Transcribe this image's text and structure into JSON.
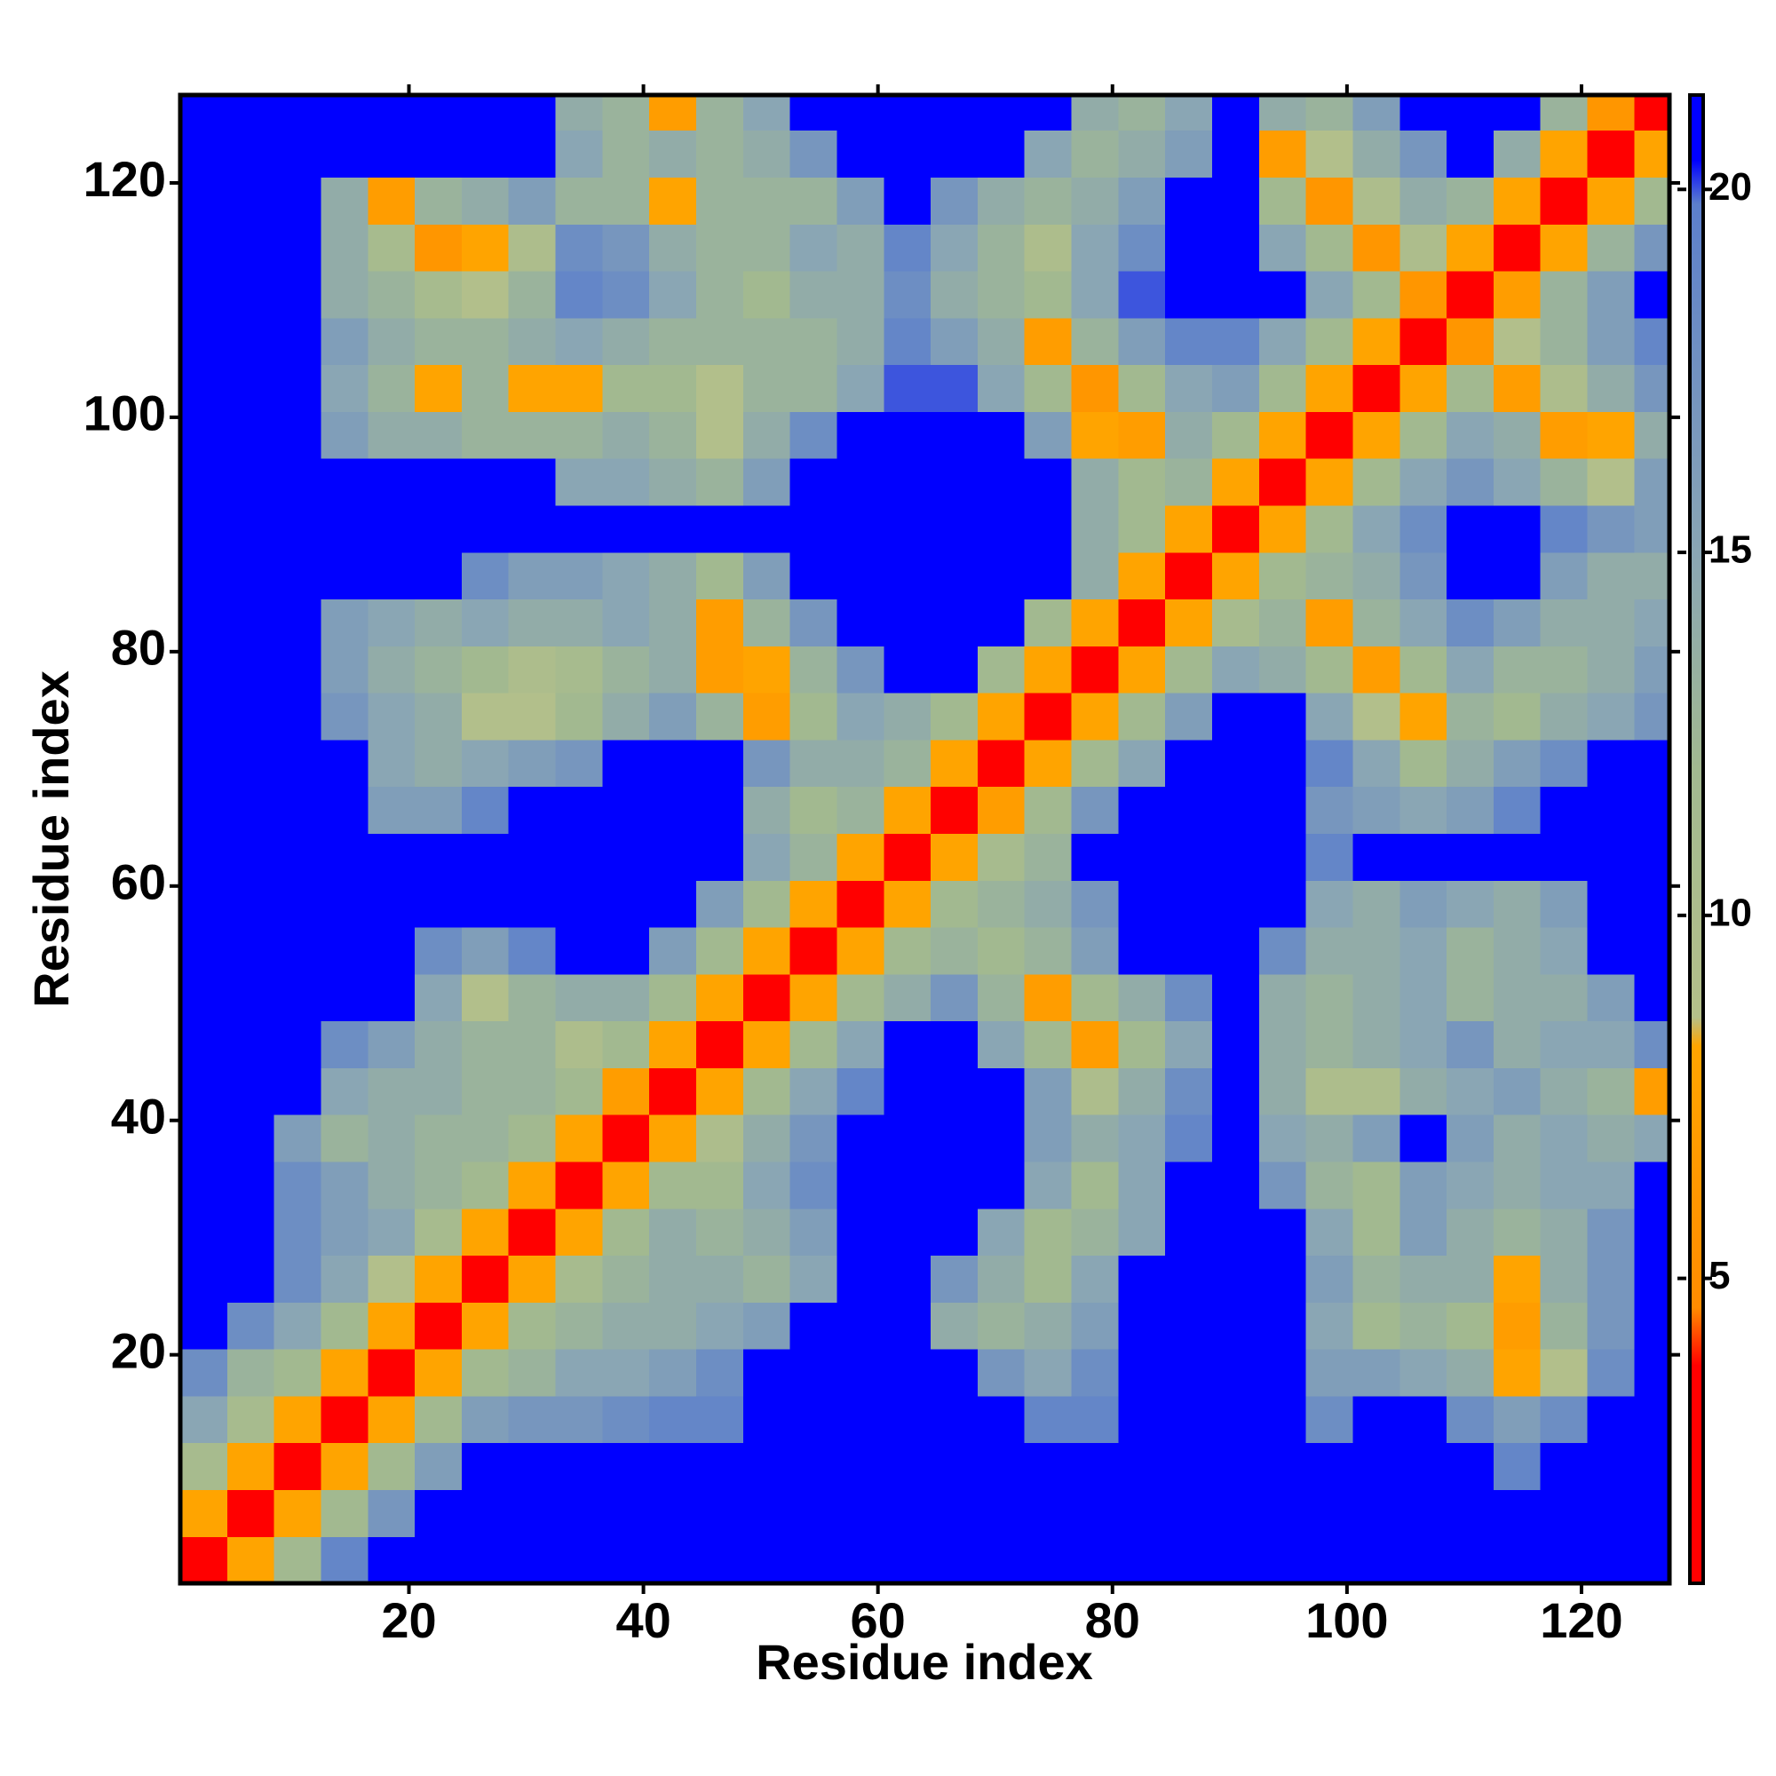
{
  "chart_data": {
    "type": "heatmap",
    "xlabel": "Residue index",
    "ylabel": "Residue index",
    "xlim": [
      0.5,
      127.5
    ],
    "ylim": [
      0.5,
      127.5
    ],
    "xticks": [
      20,
      40,
      60,
      80,
      100,
      120
    ],
    "yticks": [
      20,
      40,
      60,
      80,
      100,
      120
    ],
    "xbins": [
      0.5,
      4.5,
      8.5,
      12.5,
      16.5,
      20.5,
      24.5,
      28.5,
      32.5,
      36.5,
      40.5,
      44.5,
      48.5,
      52.5,
      56.5,
      60.5,
      64.5,
      68.5,
      72.5,
      76.5,
      80.5,
      84.5,
      88.5,
      92.5,
      96.5,
      100.5,
      104.5,
      108.5,
      112.5,
      116.5,
      120.5,
      124.5,
      127.5
    ],
    "ybins": [
      0.5,
      4.5,
      8.5,
      12.5,
      16.5,
      20.5,
      24.5,
      28.5,
      32.5,
      36.5,
      40.5,
      44.5,
      48.5,
      52.5,
      56.5,
      60.5,
      64.5,
      68.5,
      72.5,
      76.5,
      80.5,
      84.5,
      88.5,
      92.5,
      96.5,
      100.5,
      104.5,
      108.5,
      112.5,
      116.5,
      120.5,
      124.5,
      127.5
    ],
    "zlim": [
      0.8,
      21.3
    ],
    "zticks": [
      5,
      10,
      15,
      20
    ],
    "colorscale": [
      {
        "value": 0.8,
        "color": "#ff0000"
      },
      {
        "value": 3.8,
        "color": "#ff0000"
      },
      {
        "value": 4.6,
        "color": "#ff8c00"
      },
      {
        "value": 8.2,
        "color": "#ffa500"
      },
      {
        "value": 8.6,
        "color": "#b4c08a"
      },
      {
        "value": 12,
        "color": "#a2b990"
      },
      {
        "value": 15,
        "color": "#8aa6b4"
      },
      {
        "value": 19.8,
        "color": "#5c7fcc"
      },
      {
        "value": 20.4,
        "color": "#0000ff"
      },
      {
        "value": 21.3,
        "color": "#0000ff"
      }
    ],
    "z": [
      [
        3,
        8,
        12,
        19,
        21,
        21,
        21,
        21,
        21,
        21,
        21,
        21,
        21,
        21,
        21,
        21,
        21,
        21,
        21,
        21,
        21,
        21,
        21,
        21,
        21,
        21,
        21,
        21,
        21,
        21,
        21,
        21
      ],
      [
        8,
        3,
        8,
        12,
        17,
        21,
        21,
        21,
        21,
        21,
        21,
        21,
        21,
        21,
        21,
        21,
        21,
        21,
        21,
        21,
        21,
        21,
        21,
        21,
        21,
        21,
        21,
        21,
        21,
        21,
        21,
        21
      ],
      [
        11,
        8,
        3,
        8,
        12,
        16,
        21,
        21,
        21,
        21,
        21,
        21,
        21,
        21,
        21,
        21,
        21,
        21,
        21,
        21,
        21,
        21,
        21,
        21,
        21,
        21,
        21,
        21,
        19,
        21,
        21,
        21
      ],
      [
        15,
        11,
        8,
        3,
        8,
        12,
        16,
        17,
        17,
        18,
        19,
        19,
        21,
        21,
        21,
        21,
        21,
        21,
        19,
        19,
        21,
        21,
        21,
        21,
        18,
        21,
        21,
        18,
        16,
        18,
        21,
        21
      ],
      [
        18,
        13,
        12,
        8,
        3,
        8,
        12,
        13,
        15,
        15,
        16,
        18,
        21,
        21,
        21,
        21,
        21,
        17,
        15,
        18,
        21,
        21,
        21,
        21,
        16,
        16,
        15,
        14,
        8,
        9,
        18,
        21
      ],
      [
        21,
        18,
        15,
        12,
        8,
        3,
        8,
        12,
        13,
        14,
        14,
        15,
        16,
        21,
        21,
        21,
        14,
        13,
        14,
        16,
        21,
        21,
        21,
        21,
        15,
        12,
        13,
        12,
        7,
        13,
        17,
        21
      ],
      [
        21,
        21,
        18,
        15,
        9,
        8,
        3,
        8,
        11,
        13,
        14,
        14,
        13,
        15,
        21,
        21,
        17,
        14,
        12,
        15,
        21,
        21,
        21,
        21,
        16,
        13,
        14,
        14,
        8,
        14,
        17,
        21
      ],
      [
        21,
        21,
        18,
        16,
        15,
        11,
        8,
        3,
        8,
        12,
        14,
        13,
        14,
        16,
        21,
        21,
        21,
        15,
        12,
        13,
        15,
        21,
        21,
        21,
        15,
        12,
        16,
        14,
        13,
        14,
        17,
        21
      ],
      [
        21,
        21,
        18,
        16,
        14,
        13,
        12,
        8,
        3,
        8,
        12,
        12,
        15,
        18,
        21,
        21,
        21,
        21,
        15,
        12,
        15,
        21,
        21,
        17,
        13,
        12,
        16,
        15,
        14,
        15,
        15,
        21
      ],
      [
        21,
        21,
        16,
        13,
        14,
        13,
        13,
        12,
        8,
        3,
        8,
        10,
        14,
        17,
        21,
        21,
        21,
        21,
        16,
        14,
        15,
        19,
        21,
        15,
        14,
        16,
        21,
        16,
        14,
        15,
        14,
        15
      ],
      [
        21,
        21,
        21,
        15,
        14,
        14,
        13,
        13,
        12,
        7,
        3,
        8,
        12,
        15,
        19,
        21,
        21,
        21,
        16,
        10,
        14,
        18,
        21,
        14,
        10,
        10,
        14,
        15,
        16,
        14,
        13,
        7
      ],
      [
        21,
        21,
        21,
        18,
        16,
        14,
        13,
        13,
        10,
        12,
        8,
        3,
        8,
        12,
        15,
        21,
        21,
        15,
        12,
        7,
        12,
        15,
        21,
        14,
        13,
        14,
        15,
        17,
        14,
        15,
        15,
        18
      ],
      [
        21,
        21,
        21,
        21,
        21,
        15,
        9,
        13,
        14,
        14,
        12,
        8,
        3,
        8,
        12,
        14,
        17,
        13,
        7,
        12,
        14,
        18,
        21,
        14,
        13,
        14,
        15,
        13,
        14,
        14,
        16,
        21
      ],
      [
        21,
        21,
        21,
        21,
        21,
        18,
        16,
        19,
        21,
        21,
        16,
        12,
        8,
        3,
        8,
        12,
        13,
        12,
        13,
        16,
        21,
        21,
        21,
        18,
        14,
        14,
        15,
        13,
        14,
        15,
        21,
        21
      ],
      [
        21,
        21,
        21,
        21,
        21,
        21,
        21,
        21,
        21,
        21,
        21,
        16,
        12,
        8,
        3,
        8,
        12,
        13,
        14,
        17,
        21,
        21,
        21,
        21,
        15,
        14,
        16,
        15,
        14,
        16,
        21,
        21
      ],
      [
        21,
        21,
        21,
        21,
        21,
        21,
        21,
        21,
        21,
        21,
        21,
        21,
        15,
        13,
        8,
        3,
        8,
        11,
        13,
        21,
        21,
        21,
        21,
        21,
        19,
        21,
        21,
        21,
        21,
        21,
        21,
        21
      ],
      [
        21,
        21,
        21,
        21,
        16,
        16,
        19,
        21,
        21,
        21,
        21,
        21,
        14,
        12,
        13,
        8,
        3,
        7,
        12,
        17,
        21,
        21,
        21,
        21,
        17,
        16,
        15,
        16,
        19,
        21,
        21,
        21
      ],
      [
        21,
        21,
        21,
        21,
        15,
        14,
        15,
        16,
        17,
        21,
        21,
        21,
        17,
        14,
        14,
        13,
        8,
        3,
        8,
        12,
        15,
        21,
        21,
        21,
        19,
        15,
        12,
        14,
        16,
        18,
        21,
        21
      ],
      [
        21,
        21,
        21,
        17,
        15,
        14,
        9,
        9,
        12,
        14,
        16,
        13,
        7,
        12,
        15,
        14,
        12,
        8,
        3,
        8,
        12,
        16,
        21,
        21,
        15,
        9,
        8,
        13,
        12,
        14,
        15,
        17
      ],
      [
        21,
        21,
        21,
        16,
        14,
        13,
        12,
        10,
        11,
        13,
        14,
        7,
        8,
        13,
        17,
        21,
        21,
        12,
        8,
        3,
        8,
        12,
        15,
        14,
        12,
        7,
        12,
        15,
        13,
        13,
        14,
        16
      ],
      [
        21,
        21,
        21,
        16,
        15,
        14,
        15,
        14,
        14,
        15,
        14,
        7,
        13,
        17,
        21,
        21,
        21,
        21,
        12,
        8,
        3,
        8,
        11,
        13,
        7,
        13,
        15,
        18,
        16,
        14,
        14,
        15
      ],
      [
        21,
        21,
        21,
        21,
        21,
        21,
        18,
        16,
        16,
        15,
        14,
        12,
        16,
        21,
        21,
        21,
        21,
        21,
        21,
        14,
        8,
        3,
        8,
        12,
        13,
        14,
        17,
        21,
        21,
        16,
        14,
        14
      ],
      [
        21,
        21,
        21,
        21,
        21,
        21,
        21,
        21,
        21,
        21,
        21,
        21,
        21,
        21,
        21,
        21,
        21,
        21,
        21,
        14,
        12,
        8,
        3,
        8,
        12,
        15,
        18,
        21,
        21,
        19,
        17,
        16
      ],
      [
        21,
        21,
        21,
        21,
        21,
        21,
        21,
        21,
        15,
        15,
        14,
        13,
        16,
        21,
        21,
        21,
        21,
        21,
        21,
        14,
        12,
        13,
        8,
        3,
        8,
        12,
        15,
        17,
        15,
        13,
        9,
        16
      ],
      [
        21,
        21,
        21,
        16,
        14,
        14,
        13,
        13,
        13,
        14,
        13,
        9,
        14,
        18,
        21,
        21,
        21,
        21,
        16,
        8,
        7,
        14,
        12,
        8,
        3,
        8,
        12,
        15,
        14,
        7,
        8,
        14
      ],
      [
        21,
        21,
        21,
        15,
        13,
        8,
        13,
        8,
        8,
        12,
        12,
        9,
        13,
        13,
        15,
        20,
        20,
        15,
        12,
        6,
        12,
        15,
        16,
        12,
        8,
        3,
        8,
        12,
        7,
        10,
        14,
        17
      ],
      [
        21,
        21,
        21,
        16,
        14,
        13,
        13,
        14,
        15,
        14,
        13,
        13,
        13,
        13,
        14,
        19,
        16,
        14,
        7,
        13,
        16,
        19,
        19,
        15,
        12,
        8,
        3,
        6,
        9,
        13,
        16,
        19
      ],
      [
        21,
        21,
        21,
        14,
        13,
        11,
        9,
        13,
        19,
        18,
        15,
        13,
        12,
        14,
        14,
        18,
        14,
        13,
        12,
        15,
        20,
        21,
        21,
        21,
        15,
        12,
        6,
        3,
        7,
        13,
        16,
        21
      ],
      [
        21,
        21,
        21,
        14,
        11,
        6,
        8,
        10,
        18,
        17,
        14,
        13,
        13,
        15,
        14,
        19,
        15,
        13,
        10,
        15,
        18,
        21,
        21,
        15,
        12,
        6,
        10,
        8,
        3,
        8,
        13,
        17
      ],
      [
        21,
        21,
        21,
        14,
        7,
        13,
        14,
        16,
        13,
        13,
        8,
        13,
        13,
        13,
        16,
        21,
        17,
        14,
        13,
        14,
        16,
        21,
        21,
        12,
        6,
        10,
        14,
        13,
        8,
        3,
        8,
        12
      ],
      [
        21,
        21,
        21,
        21,
        21,
        21,
        21,
        21,
        15,
        13,
        14,
        13,
        14,
        17,
        21,
        21,
        21,
        21,
        15,
        13,
        14,
        16,
        21,
        7,
        9,
        14,
        17,
        21,
        14,
        8,
        3,
        8
      ],
      [
        21,
        21,
        21,
        21,
        21,
        21,
        21,
        21,
        14,
        13,
        7,
        13,
        15,
        21,
        21,
        21,
        21,
        21,
        21,
        14,
        13,
        15,
        21,
        14,
        13,
        16,
        21,
        21,
        21,
        13,
        6,
        2
      ]
    ]
  }
}
